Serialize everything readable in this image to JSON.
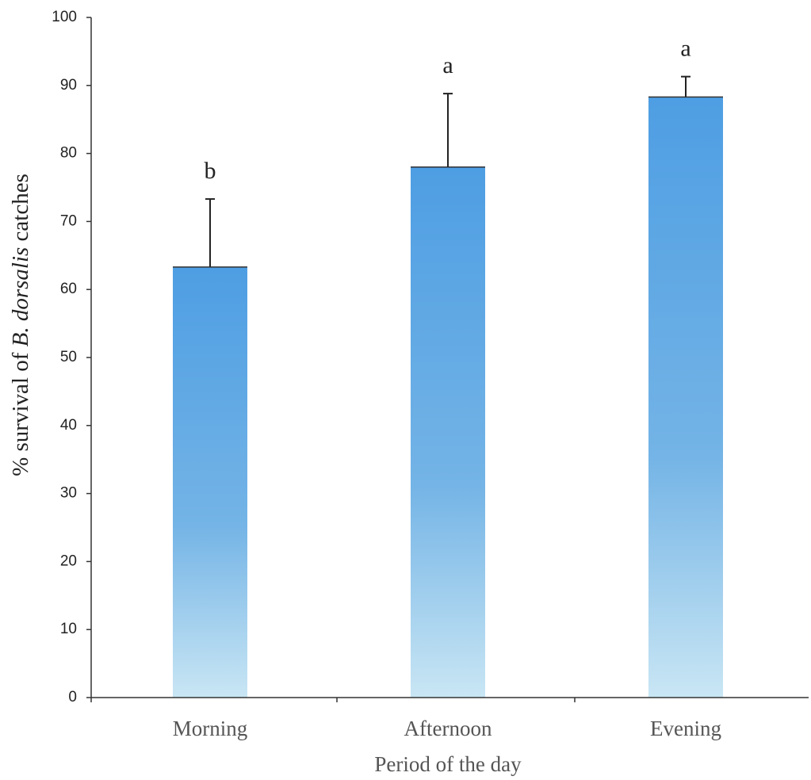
{
  "chart_data": {
    "type": "bar",
    "ylabel": [
      "% survival of ",
      "B. dorsalis",
      " catches"
    ],
    "xlabel": "Period of the day",
    "categories": [
      "Morning",
      "Afternoon",
      "Evening"
    ],
    "values": [
      63.3,
      78.0,
      88.3
    ],
    "errors": [
      10.0,
      10.8,
      3.0
    ],
    "annotations": [
      "b",
      "a",
      "a"
    ],
    "color": "#5fa8e4",
    "ylim": [
      0,
      100
    ],
    "yticks": [
      0,
      10,
      20,
      30,
      40,
      50,
      60,
      70,
      80,
      90,
      100
    ]
  }
}
